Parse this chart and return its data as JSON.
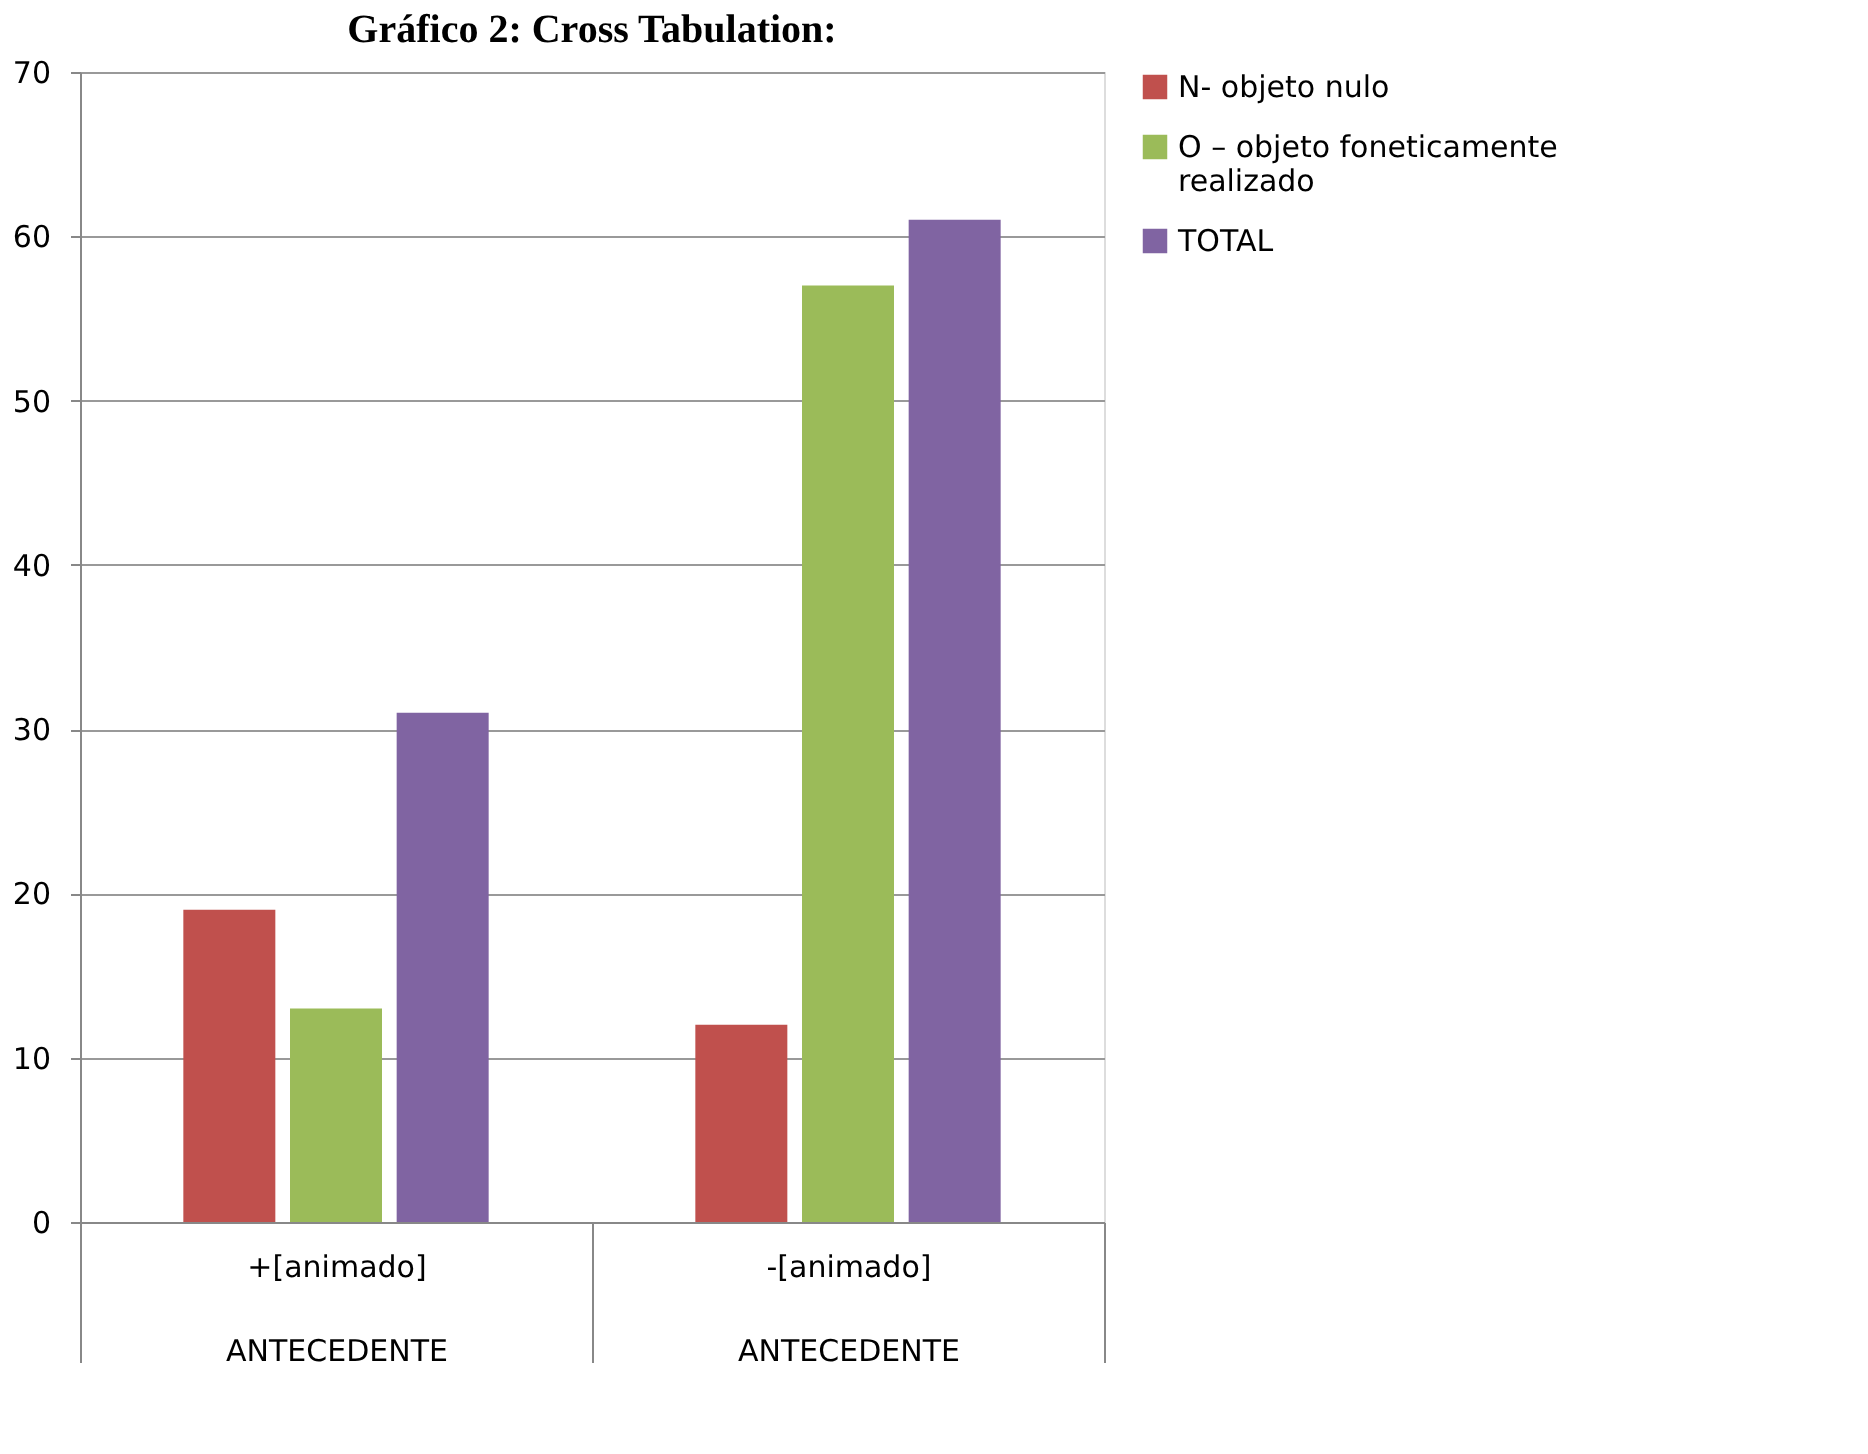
{
  "chart_data": {
    "type": "bar",
    "title": "Gráfico 2: Cross Tabulation:",
    "categories": [
      "+[animado]\nANTECEDENTE",
      "-[animado]\nANTECEDENTE"
    ],
    "series": [
      {
        "name": "N- objeto nulo",
        "color": "#c0504d",
        "values": [
          19,
          12
        ]
      },
      {
        "name": "O – objeto foneticamente realizado",
        "color": "#9bbb59",
        "values": [
          13,
          57
        ]
      },
      {
        "name": "TOTAL",
        "color": "#8064a2",
        "values": [
          31,
          61
        ]
      }
    ],
    "ylim": [
      0,
      70
    ],
    "yticks": [
      0,
      10,
      20,
      30,
      40,
      50,
      60,
      70
    ],
    "grid": "y",
    "legend": "right"
  }
}
